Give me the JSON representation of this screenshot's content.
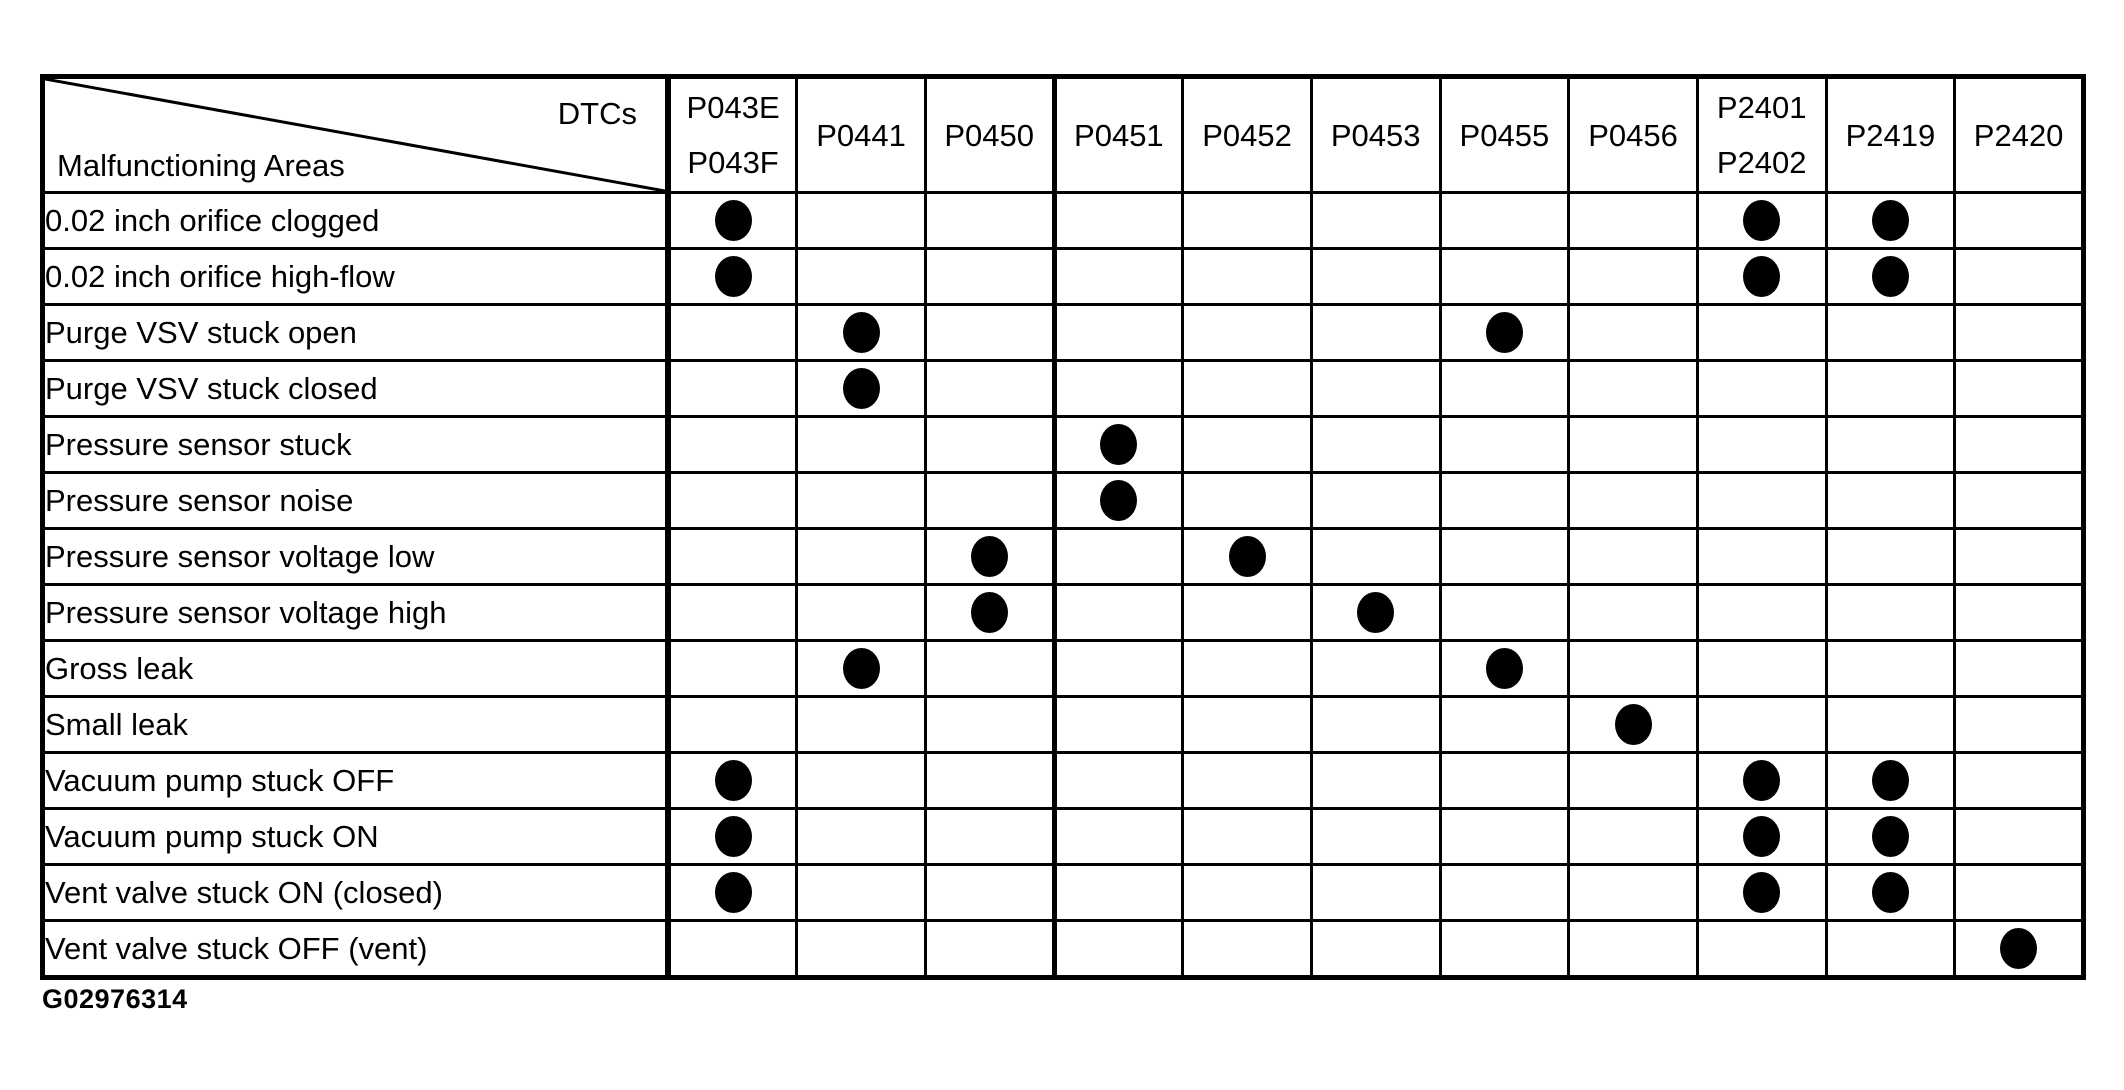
{
  "figure_id": "G02976314",
  "colors": {
    "ink": "#000000",
    "background": "#ffffff"
  },
  "table": {
    "corner_top_right": "DTCs",
    "corner_bottom_left": "Malfunctioning Areas",
    "column_headers": [
      [
        "P043E",
        "P043F"
      ],
      [
        "P0441"
      ],
      [
        "P0450"
      ],
      [
        "P0451"
      ],
      [
        "P0452"
      ],
      [
        "P0453"
      ],
      [
        "P0455"
      ],
      [
        "P0456"
      ],
      [
        "P2401",
        "P2402"
      ],
      [
        "P2419"
      ],
      [
        "P2420"
      ]
    ],
    "rows": [
      {
        "label": "0.02 inch orifice clogged",
        "dots": [
          0,
          8,
          9
        ]
      },
      {
        "label": "0.02 inch orifice high-flow",
        "dots": [
          0,
          8,
          9
        ]
      },
      {
        "label": "Purge VSV stuck open",
        "dots": [
          1,
          6
        ]
      },
      {
        "label": "Purge VSV stuck closed",
        "dots": [
          1
        ]
      },
      {
        "label": "Pressure sensor stuck",
        "dots": [
          3
        ]
      },
      {
        "label": "Pressure sensor noise",
        "dots": [
          3
        ]
      },
      {
        "label": "Pressure sensor voltage low",
        "dots": [
          2,
          4
        ]
      },
      {
        "label": "Pressure sensor voltage high",
        "dots": [
          2,
          5
        ]
      },
      {
        "label": "Gross leak",
        "dots": [
          1,
          6
        ]
      },
      {
        "label": "Small leak",
        "dots": [
          7
        ]
      },
      {
        "label": "Vacuum pump stuck OFF",
        "dots": [
          0,
          8,
          9
        ]
      },
      {
        "label": "Vacuum pump stuck ON",
        "dots": [
          0,
          8,
          9
        ]
      },
      {
        "label": "Vent valve stuck ON (closed)",
        "dots": [
          0,
          8,
          9
        ]
      },
      {
        "label": "Vent valve stuck OFF (vent)",
        "dots": [
          10
        ]
      }
    ]
  }
}
